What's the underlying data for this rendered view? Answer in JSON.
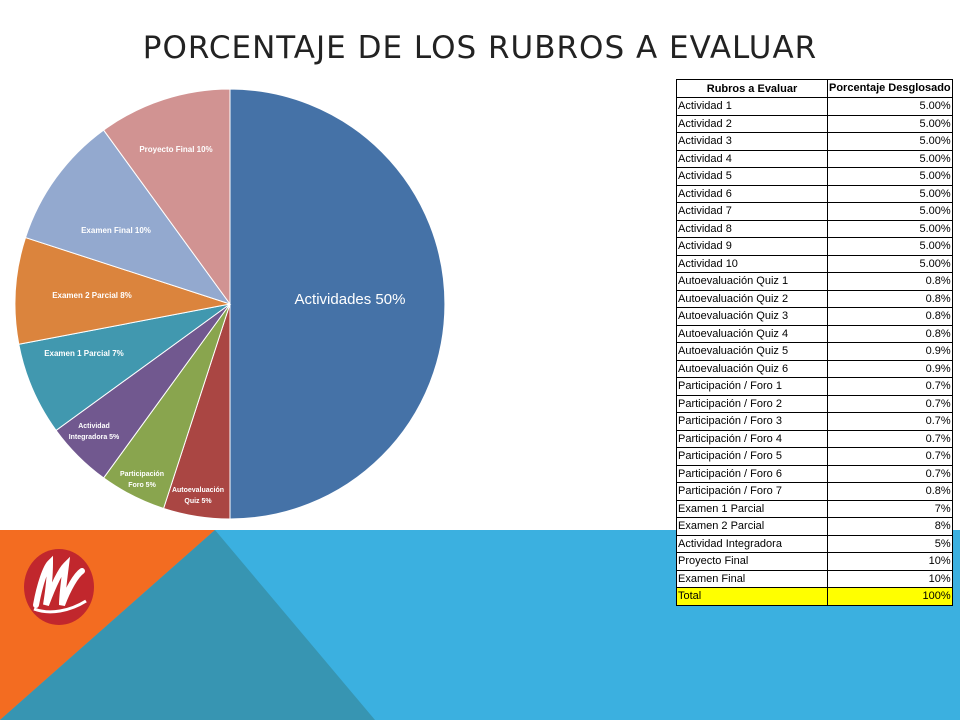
{
  "title": "PORCENTAJE DE LOS RUBROS A EVALUAR",
  "chart_data": {
    "type": "pie",
    "slices": [
      {
        "label": "Actividades 50%",
        "value": 50,
        "color": "#4572A7"
      },
      {
        "label": "Autoevaluación Quiz 5%",
        "value": 5,
        "color": "#AA4643"
      },
      {
        "label": "Participación Foro 5%",
        "value": 5,
        "color": "#89A54E"
      },
      {
        "label": "Actividad Integradora 5%",
        "value": 5,
        "color": "#71588F"
      },
      {
        "label": "Examen 1 Parcial 7%",
        "value": 7,
        "color": "#4198AF"
      },
      {
        "label": "Examen 2 Parcial 8%",
        "value": 8,
        "color": "#DB843D"
      },
      {
        "label": "Examen Final 10%",
        "value": 10,
        "color": "#93A9CF"
      },
      {
        "label": "Proyecto Final 10%",
        "value": 10,
        "color": "#D19392"
      }
    ]
  },
  "table": {
    "headers": [
      "Rubros a Evaluar",
      "Porcentaje Desglosado"
    ],
    "rows": [
      [
        "Actividad 1",
        "5.00%"
      ],
      [
        "Actividad 2",
        "5.00%"
      ],
      [
        "Actividad 3",
        "5.00%"
      ],
      [
        "Actividad 4",
        "5.00%"
      ],
      [
        "Actividad 5",
        "5.00%"
      ],
      [
        "Actividad 6",
        "5.00%"
      ],
      [
        "Actividad 7",
        "5.00%"
      ],
      [
        "Actividad 8",
        "5.00%"
      ],
      [
        "Actividad 9",
        "5.00%"
      ],
      [
        "Actividad 10",
        "5.00%"
      ],
      [
        "Autoevaluación Quiz 1",
        "0.8%"
      ],
      [
        "Autoevaluación Quiz 2",
        "0.8%"
      ],
      [
        "Autoevaluación Quiz 3",
        "0.8%"
      ],
      [
        "Autoevaluación Quiz 4",
        "0.8%"
      ],
      [
        "Autoevaluación Quiz 5",
        "0.9%"
      ],
      [
        "Autoevaluación Quiz 6",
        "0.9%"
      ],
      [
        "Participación / Foro 1",
        "0.7%"
      ],
      [
        "Participación / Foro 2",
        "0.7%"
      ],
      [
        "Participación / Foro 3",
        "0.7%"
      ],
      [
        "Participación / Foro 4",
        "0.7%"
      ],
      [
        "Participación / Foro 5",
        "0.7%"
      ],
      [
        "Participación / Foro 6",
        "0.7%"
      ],
      [
        "Participación / Foro 7",
        "0.8%"
      ],
      [
        "Examen 1 Parcial",
        "7%"
      ],
      [
        "Examen 2 Parcial",
        "8%"
      ],
      [
        "Actividad Integradora",
        "5%"
      ],
      [
        "Proyecto Final",
        "10%"
      ],
      [
        "Examen Final",
        "10%"
      ]
    ],
    "total": [
      "Total",
      "100%"
    ]
  },
  "theme": {
    "orange": "#F36C21",
    "blue": "#3BB0E0",
    "teal": "#3795B2",
    "total_highlight": "#FFFF00",
    "logo_red": "#C1272D"
  }
}
